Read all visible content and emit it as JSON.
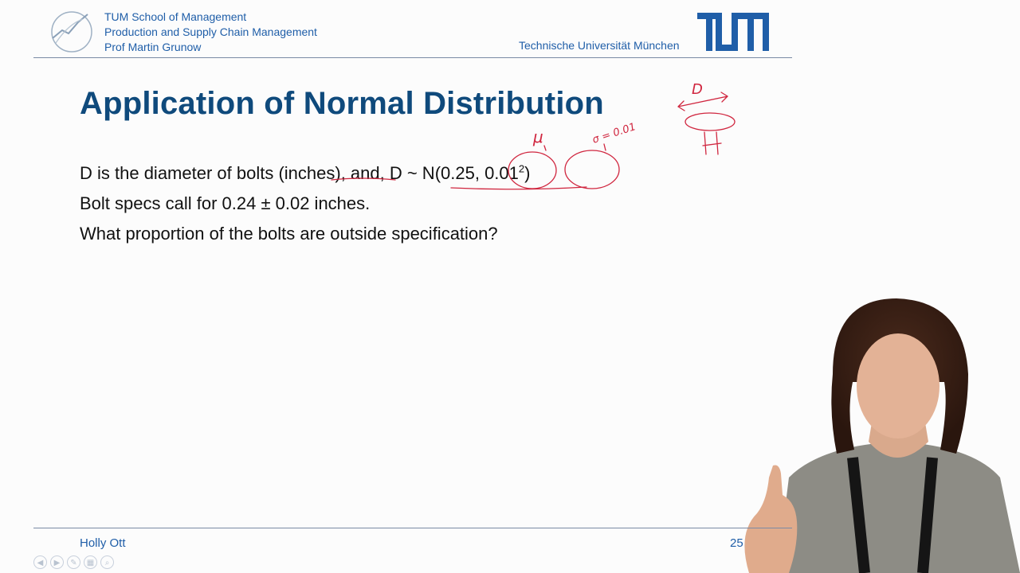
{
  "header": {
    "school": "TUM School of Management",
    "chair": "Production and Supply Chain Management",
    "professor": "Prof Martin Grunow",
    "university": "Technische Universität München",
    "logo_icon": "tum-logo-icon",
    "chair_icon": "chair-logo-icon"
  },
  "slide": {
    "title": "Application of Normal Distribution",
    "line1_pre": "D is the diameter of bolts (inches), and, D ~ N(0.25, 0.01",
    "line1_sup": "2",
    "line1_post": ")",
    "line2": "Bolt specs call for 0.24 ± 0.02 inches.",
    "line3": "What proportion of the bolts are outside specification?"
  },
  "annotations": {
    "mu": "μ",
    "sigma": "σ = 0.01",
    "d_label": "D"
  },
  "footer": {
    "author": "Holly Ott",
    "page": "25"
  },
  "colors": {
    "brand_blue": "#1f5ea8",
    "title_blue": "#0f4a7c",
    "ink_red": "#d0263f"
  }
}
